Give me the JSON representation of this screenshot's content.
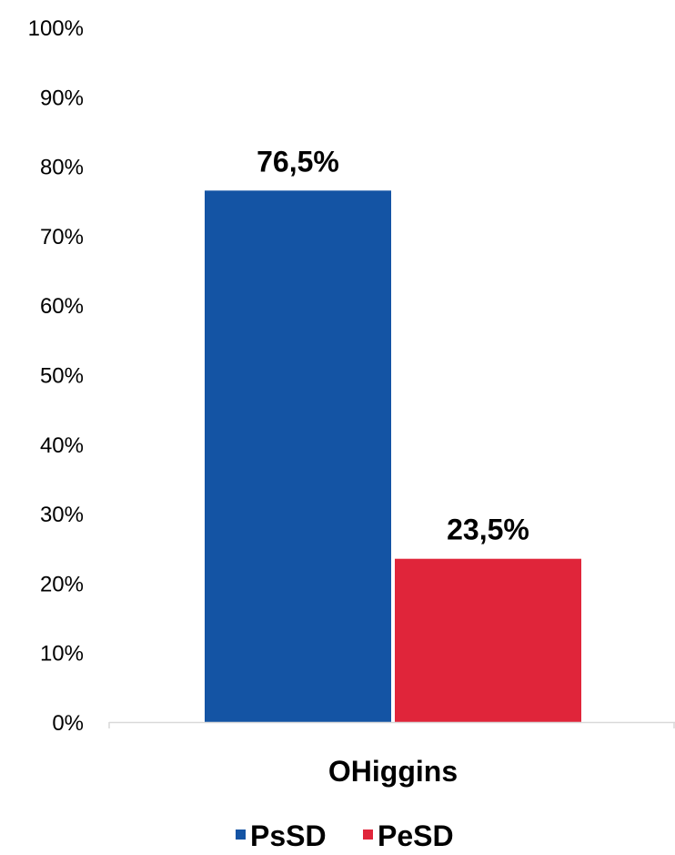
{
  "chart_data": {
    "type": "bar",
    "categories": [
      "OHiggins"
    ],
    "series": [
      {
        "name": "PsSD",
        "values": [
          76.5
        ],
        "color": "#1454A4",
        "label": "76,5%"
      },
      {
        "name": "PeSD",
        "values": [
          23.5
        ],
        "color": "#E0253A",
        "label": "23,5%"
      }
    ],
    "ylim": [
      0,
      100
    ],
    "yticks": [
      {
        "value": 0,
        "label": "0%"
      },
      {
        "value": 10,
        "label": "10%"
      },
      {
        "value": 20,
        "label": "20%"
      },
      {
        "value": 30,
        "label": "30%"
      },
      {
        "value": 40,
        "label": "40%"
      },
      {
        "value": 50,
        "label": "50%"
      },
      {
        "value": 60,
        "label": "60%"
      },
      {
        "value": 70,
        "label": "70%"
      },
      {
        "value": 80,
        "label": "80%"
      },
      {
        "value": 90,
        "label": "90%"
      },
      {
        "value": 100,
        "label": "100%"
      }
    ],
    "title": "",
    "xlabel": "",
    "ylabel": "",
    "grid": false,
    "legend_position": "bottom",
    "axis_color": "#D9D9D9"
  }
}
